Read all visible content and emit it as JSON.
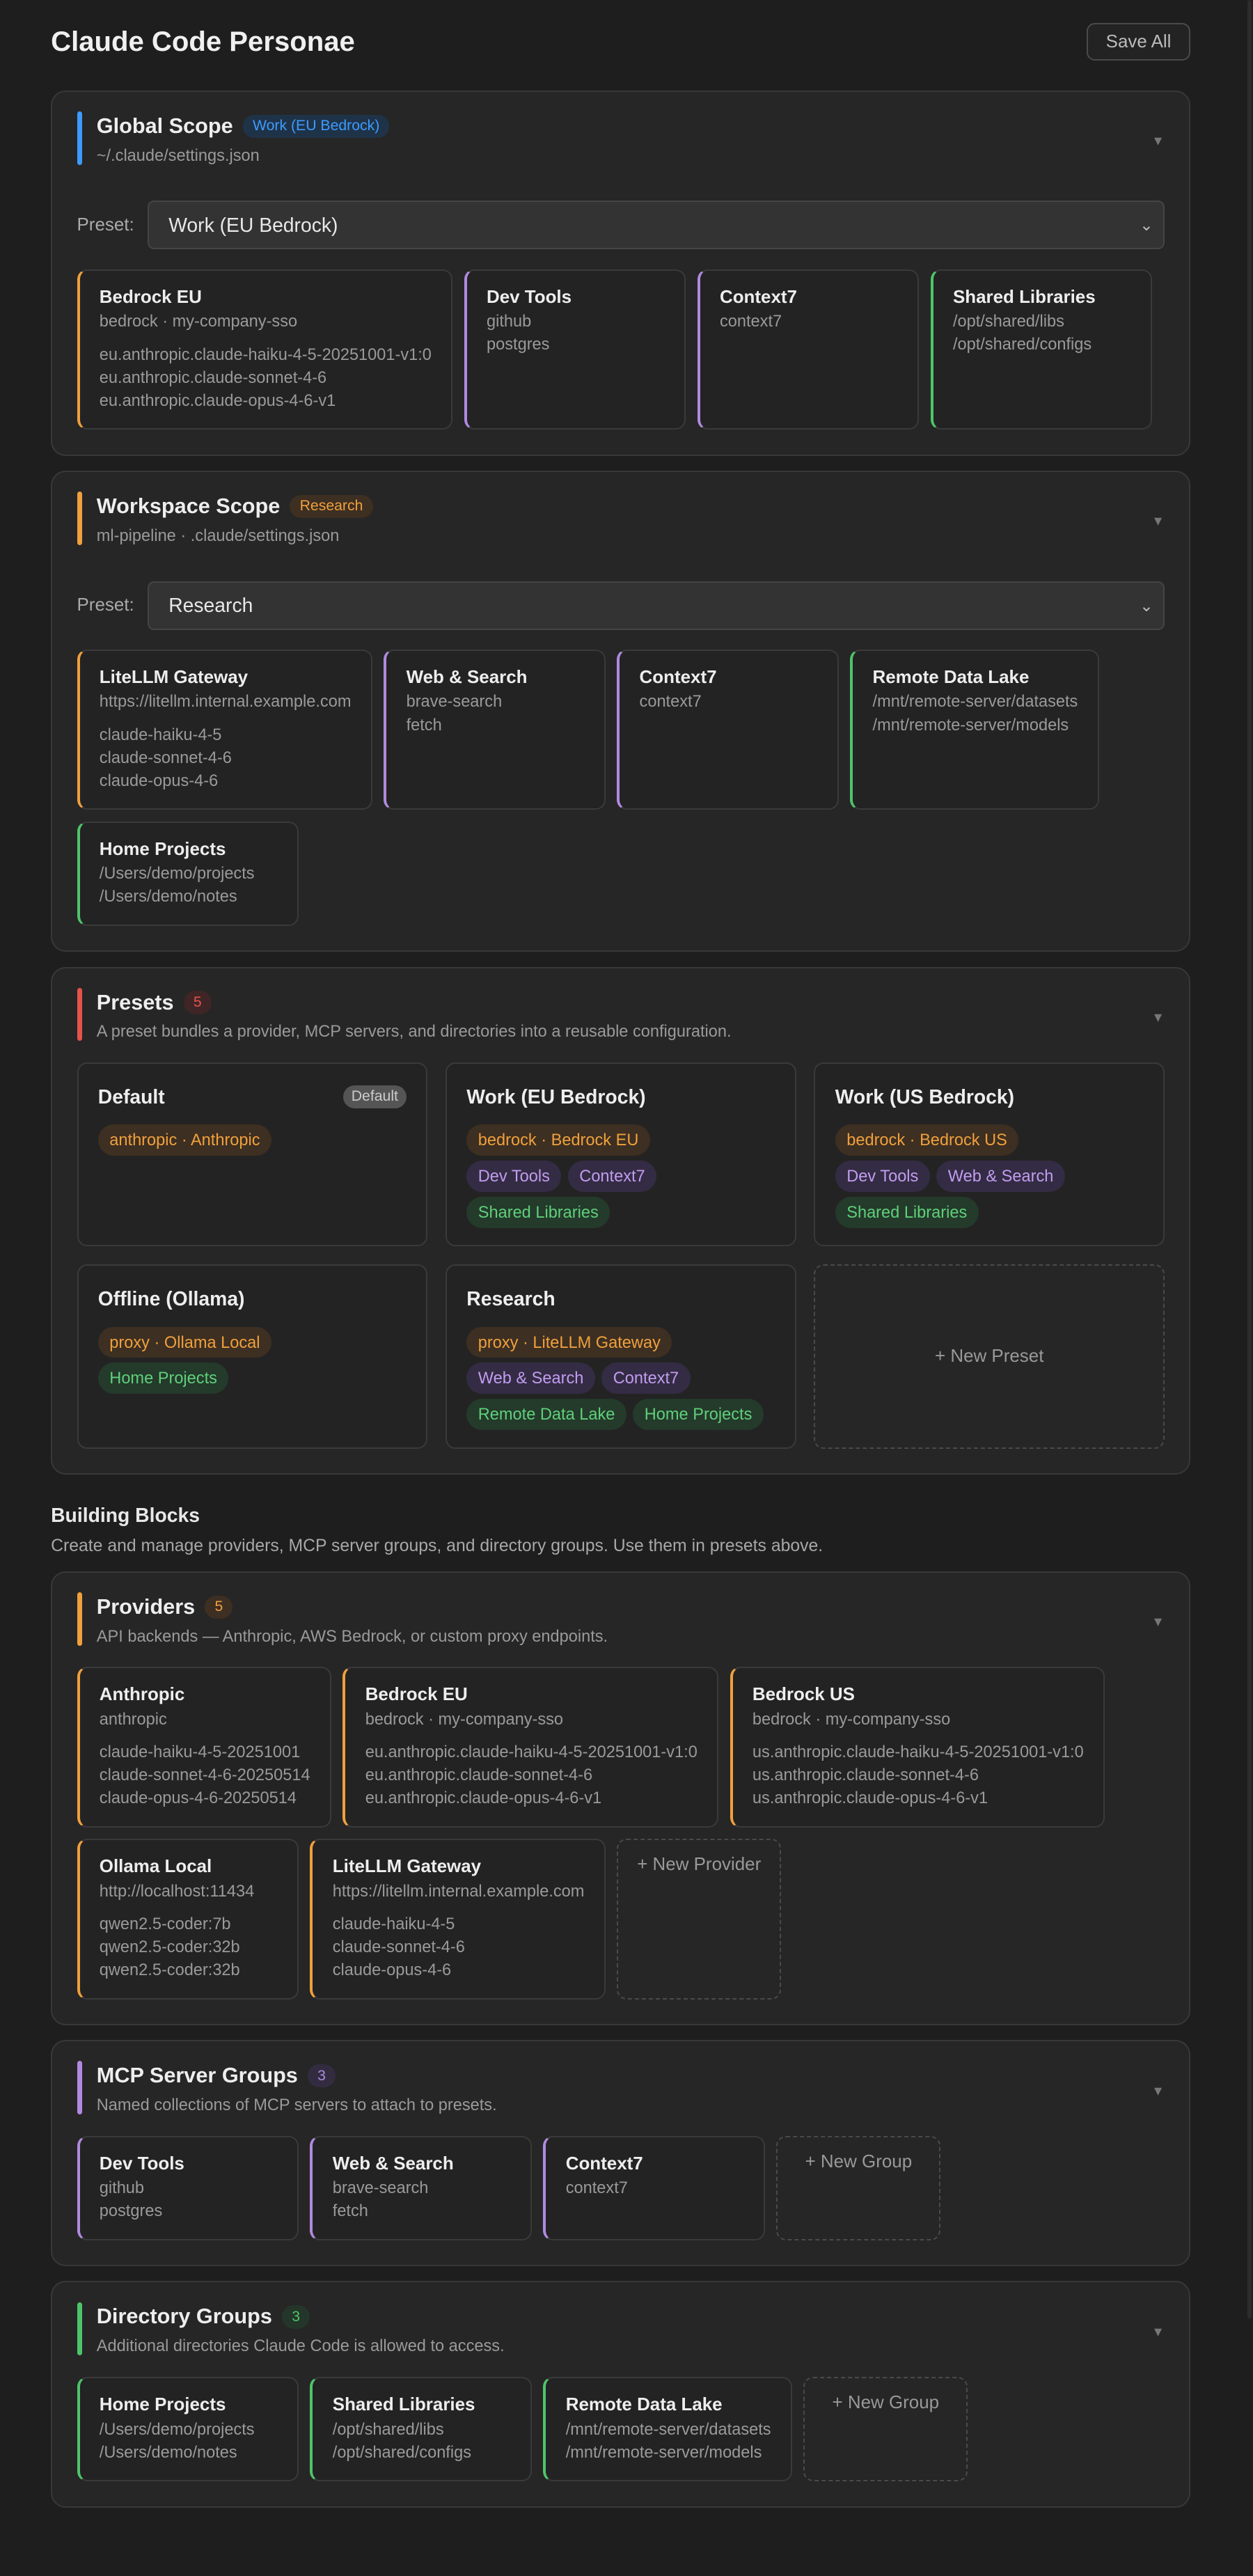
{
  "header": {
    "title": "Claude Code Personae",
    "save_label": "Save All"
  },
  "colors": {
    "blue": "#3d9bff",
    "orange": "#f0a03c",
    "purple": "#b08ae0",
    "green": "#4ec46a",
    "red": "#e5534b"
  },
  "collapse_icon": "▼",
  "select_chevron": "⌄",
  "scopes": [
    {
      "title": "Global Scope",
      "badge": "Work (EU Bedrock)",
      "badge_color": "blue",
      "path": "~/.claude/settings.json",
      "preset_label": "Preset:",
      "preset_value": "Work (EU Bedrock)",
      "items": [
        {
          "kind": "provider",
          "title": "Bedrock EU",
          "sub": "bedrock · my-company-sso",
          "lines": [
            "eu.anthropic.claude-haiku-4-5-20251001-v1:0",
            "eu.anthropic.claude-sonnet-4-6",
            "eu.anthropic.claude-opus-4-6-v1"
          ]
        },
        {
          "kind": "mcp",
          "title": "Dev Tools",
          "lines": [
            "github",
            "postgres"
          ]
        },
        {
          "kind": "mcp",
          "title": "Context7",
          "lines": [
            "context7"
          ]
        },
        {
          "kind": "dir",
          "title": "Shared Libraries",
          "lines": [
            "/opt/shared/libs",
            "/opt/shared/configs"
          ]
        }
      ]
    },
    {
      "title": "Workspace Scope",
      "badge": "Research",
      "badge_color": "orange",
      "path": "ml-pipeline · .claude/settings.json",
      "preset_label": "Preset:",
      "preset_value": "Research",
      "items": [
        {
          "kind": "provider",
          "title": "LiteLLM Gateway",
          "sub": "https://litellm.internal.example.com",
          "lines": [
            "claude-haiku-4-5",
            "claude-sonnet-4-6",
            "claude-opus-4-6"
          ]
        },
        {
          "kind": "mcp",
          "title": "Web & Search",
          "lines": [
            "brave-search",
            "fetch"
          ]
        },
        {
          "kind": "mcp",
          "title": "Context7",
          "lines": [
            "context7"
          ]
        },
        {
          "kind": "dir",
          "title": "Remote Data Lake",
          "lines": [
            "/mnt/remote-server/datasets",
            "/mnt/remote-server/models"
          ]
        },
        {
          "kind": "dir",
          "title": "Home Projects",
          "lines": [
            "/Users/demo/projects",
            "/Users/demo/notes"
          ]
        }
      ]
    }
  ],
  "presets": {
    "title": "Presets",
    "count": "5",
    "description": "A preset bundles a provider, MCP servers, and directories into a reusable configuration.",
    "items": [
      {
        "name": "Default",
        "badge": "Default",
        "rows": [
          [
            {
              "kind": "provider",
              "label": "anthropic · Anthropic"
            }
          ]
        ]
      },
      {
        "name": "Work (EU Bedrock)",
        "rows": [
          [
            {
              "kind": "provider",
              "label": "bedrock · Bedrock EU"
            }
          ],
          [
            {
              "kind": "mcp",
              "label": "Dev Tools"
            },
            {
              "kind": "mcp",
              "label": "Context7"
            }
          ],
          [
            {
              "kind": "dir",
              "label": "Shared Libraries"
            }
          ]
        ]
      },
      {
        "name": "Work (US Bedrock)",
        "rows": [
          [
            {
              "kind": "provider",
              "label": "bedrock · Bedrock US"
            }
          ],
          [
            {
              "kind": "mcp",
              "label": "Dev Tools"
            },
            {
              "kind": "mcp",
              "label": "Web & Search"
            }
          ],
          [
            {
              "kind": "dir",
              "label": "Shared Libraries"
            }
          ]
        ]
      },
      {
        "name": "Offline (Ollama)",
        "rows": [
          [
            {
              "kind": "provider",
              "label": "proxy · Ollama Local"
            }
          ],
          [
            {
              "kind": "dir",
              "label": "Home Projects"
            }
          ]
        ]
      },
      {
        "name": "Research",
        "rows": [
          [
            {
              "kind": "provider",
              "label": "proxy · LiteLLM Gateway"
            }
          ],
          [
            {
              "kind": "mcp",
              "label": "Web & Search"
            },
            {
              "kind": "mcp",
              "label": "Context7"
            }
          ],
          [
            {
              "kind": "dir",
              "label": "Remote Data Lake"
            },
            {
              "kind": "dir",
              "label": "Home Projects"
            }
          ]
        ]
      }
    ],
    "new_label": "+ New Preset"
  },
  "building_blocks": {
    "title": "Building Blocks",
    "description": "Create and manage providers, MCP server groups, and directory groups. Use them in presets above."
  },
  "blocks": [
    {
      "key": "providers",
      "kind": "provider",
      "title": "Providers",
      "count": "5",
      "description": "API backends — Anthropic, AWS Bedrock, or custom proxy endpoints.",
      "items": [
        {
          "title": "Anthropic",
          "sub": "anthropic",
          "lines": [
            "claude-haiku-4-5-20251001",
            "claude-sonnet-4-6-20250514",
            "claude-opus-4-6-20250514"
          ]
        },
        {
          "title": "Bedrock EU",
          "sub": "bedrock · my-company-sso",
          "lines": [
            "eu.anthropic.claude-haiku-4-5-20251001-v1:0",
            "eu.anthropic.claude-sonnet-4-6",
            "eu.anthropic.claude-opus-4-6-v1"
          ]
        },
        {
          "title": "Bedrock US",
          "sub": "bedrock · my-company-sso",
          "lines": [
            "us.anthropic.claude-haiku-4-5-20251001-v1:0",
            "us.anthropic.claude-sonnet-4-6",
            "us.anthropic.claude-opus-4-6-v1"
          ]
        },
        {
          "title": "Ollama Local",
          "sub": "http://localhost:11434",
          "lines": [
            "qwen2.5-coder:7b",
            "qwen2.5-coder:32b",
            "qwen2.5-coder:32b"
          ]
        },
        {
          "title": "LiteLLM Gateway",
          "sub": "https://litellm.internal.example.com",
          "lines": [
            "claude-haiku-4-5",
            "claude-sonnet-4-6",
            "claude-opus-4-6"
          ]
        }
      ],
      "new_label": "+ New Provider"
    },
    {
      "key": "mcp",
      "kind": "mcp",
      "title": "MCP Server Groups",
      "count": "3",
      "description": "Named collections of MCP servers to attach to presets.",
      "items": [
        {
          "title": "Dev Tools",
          "lines": [
            "github",
            "postgres"
          ]
        },
        {
          "title": "Web & Search",
          "lines": [
            "brave-search",
            "fetch"
          ]
        },
        {
          "title": "Context7",
          "lines": [
            "context7"
          ]
        }
      ],
      "new_label": "+ New Group"
    },
    {
      "key": "dirs",
      "kind": "dir",
      "title": "Directory Groups",
      "count": "3",
      "description": "Additional directories Claude Code is allowed to access.",
      "items": [
        {
          "title": "Home Projects",
          "lines": [
            "/Users/demo/projects",
            "/Users/demo/notes"
          ]
        },
        {
          "title": "Shared Libraries",
          "lines": [
            "/opt/shared/libs",
            "/opt/shared/configs"
          ]
        },
        {
          "title": "Remote Data Lake",
          "lines": [
            "/mnt/remote-server/datasets",
            "/mnt/remote-server/models"
          ]
        }
      ],
      "new_label": "+ New Group"
    }
  ]
}
